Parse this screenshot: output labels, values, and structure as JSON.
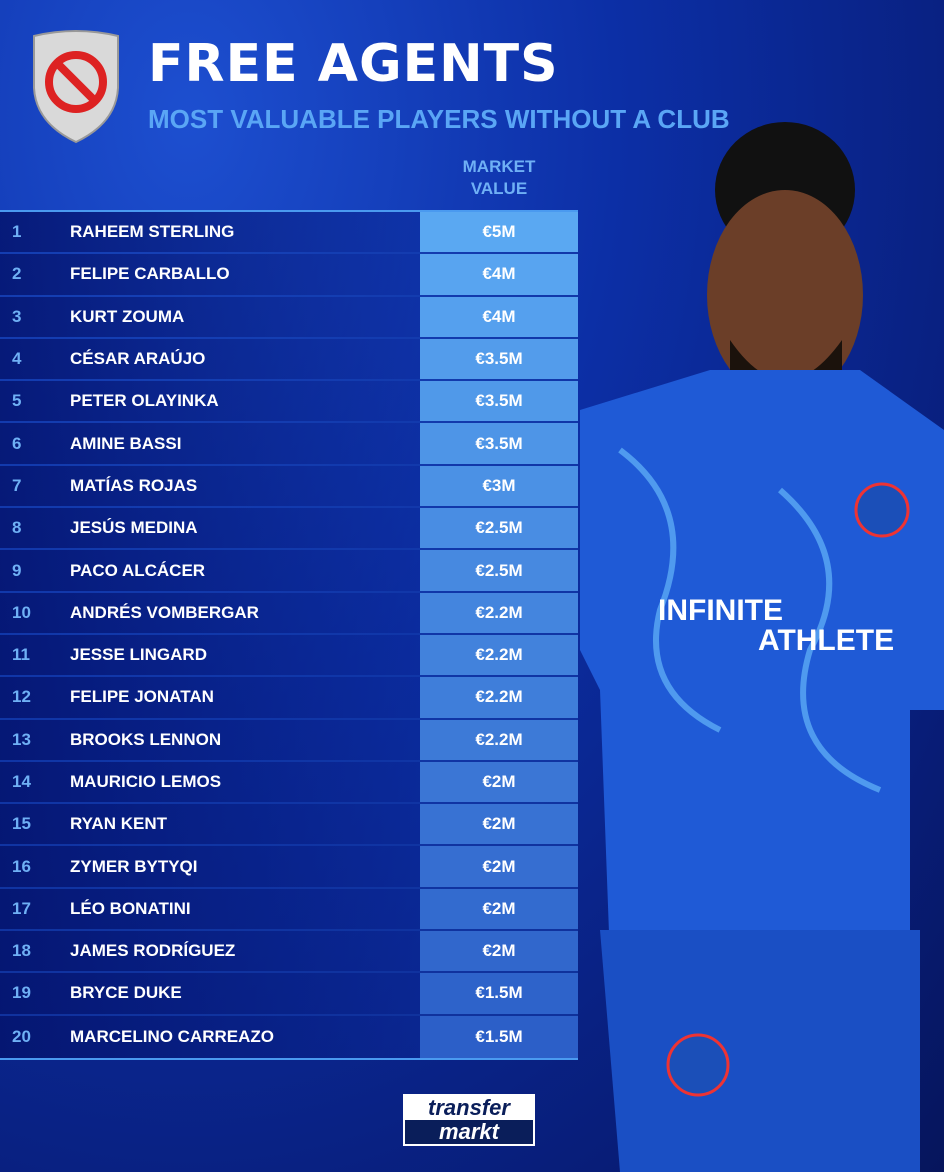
{
  "header": {
    "title": "FREE AGENTS",
    "subtitle": "MOST VALUABLE PLAYERS WITHOUT A CLUB",
    "column_header": "MARKET VALUE",
    "column_header_line1": "MARKET",
    "column_header_line2": "VALUE"
  },
  "colors": {
    "value_cell_top": "#5aa8f2",
    "value_cell_bottom": "#2c5fc8",
    "rank_text": "#6fb0f5",
    "background": "#0c2fa6"
  },
  "rows": [
    {
      "rank": "1",
      "name": "RAHEEM STERLING",
      "value": "€5M"
    },
    {
      "rank": "2",
      "name": "FELIPE CARBALLO",
      "value": "€4M"
    },
    {
      "rank": "3",
      "name": "KURT ZOUMA",
      "value": "€4M"
    },
    {
      "rank": "4",
      "name": "CÉSAR ARAÚJO",
      "value": "€3.5M"
    },
    {
      "rank": "5",
      "name": "PETER OLAYINKA",
      "value": "€3.5M"
    },
    {
      "rank": "6",
      "name": "AMINE BASSI",
      "value": "€3.5M"
    },
    {
      "rank": "7",
      "name": "MATÍAS ROJAS",
      "value": "€3M"
    },
    {
      "rank": "8",
      "name": "JESÚS MEDINA",
      "value": "€2.5M"
    },
    {
      "rank": "9",
      "name": "PACO ALCÁCER",
      "value": "€2.5M"
    },
    {
      "rank": "10",
      "name": "ANDRÉS VOMBERGAR",
      "value": "€2.2M"
    },
    {
      "rank": "11",
      "name": "JESSE LINGARD",
      "value": "€2.2M"
    },
    {
      "rank": "12",
      "name": "FELIPE JONATAN",
      "value": "€2.2M"
    },
    {
      "rank": "13",
      "name": "BROOKS LENNON",
      "value": "€2.2M"
    },
    {
      "rank": "14",
      "name": "MAURICIO LEMOS",
      "value": "€2M"
    },
    {
      "rank": "15",
      "name": "RYAN KENT",
      "value": "€2M"
    },
    {
      "rank": "16",
      "name": "ZYMER BYTYQI",
      "value": "€2M"
    },
    {
      "rank": "17",
      "name": "LÉO BONATINI",
      "value": "€2M"
    },
    {
      "rank": "18",
      "name": "JAMES RODRÍGUEZ",
      "value": "€2M"
    },
    {
      "rank": "19",
      "name": "BRYCE DUKE",
      "value": "€1.5M"
    },
    {
      "rank": "20",
      "name": "MARCELINO CARREAZO",
      "value": "€1.5M"
    }
  ],
  "footer": {
    "logo_line1": "transfer",
    "logo_line2": "markt"
  },
  "icons": {
    "badge": "prohibited-sign-shield-icon",
    "photo": "player-photo"
  }
}
